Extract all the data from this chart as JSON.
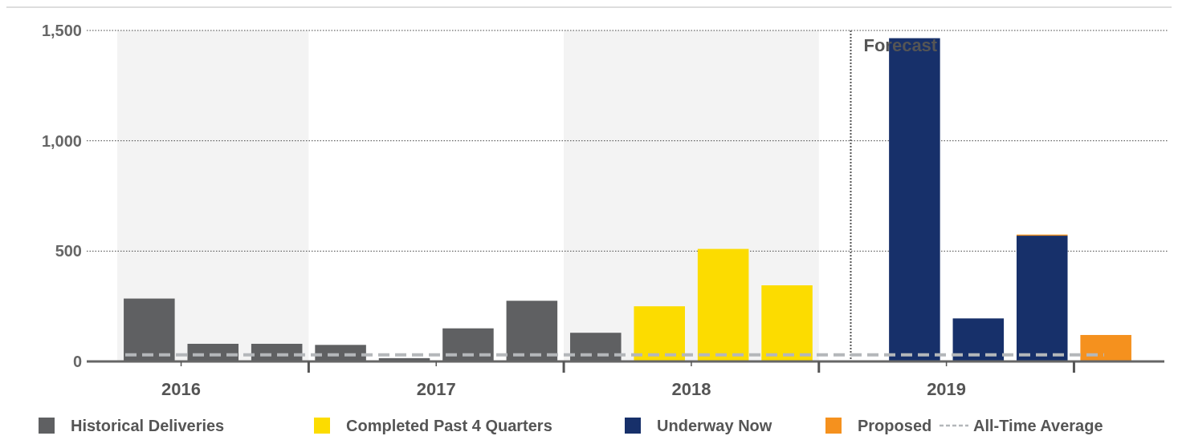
{
  "chart_data": {
    "type": "bar",
    "stacked": true,
    "x": [
      2016.375,
      2016.625,
      2016.875,
      2017.125,
      2017.375,
      2017.625,
      2017.875,
      2018.125,
      2018.375,
      2018.625,
      2018.875,
      2019.125,
      2019.375,
      2019.625,
      2019.875,
      2020.125
    ],
    "series": [
      {
        "name": "Historical Deliveries",
        "color": "#5f6062",
        "values": [
          285,
          80,
          80,
          75,
          15,
          150,
          275,
          130,
          null,
          null,
          null,
          null,
          null,
          null,
          null,
          null
        ]
      },
      {
        "name": "Completed Past 4 Quarters",
        "color": "#fcdc00",
        "values": [
          null,
          null,
          null,
          null,
          null,
          null,
          null,
          null,
          250,
          510,
          345,
          null,
          null,
          null,
          null,
          null
        ]
      },
      {
        "name": "Underway Now",
        "color": "#17306a",
        "values": [
          null,
          null,
          null,
          null,
          null,
          null,
          null,
          null,
          null,
          null,
          null,
          null,
          1465,
          195,
          570,
          null
        ]
      },
      {
        "name": "Proposed",
        "color": "#f5911e",
        "values": [
          null,
          null,
          null,
          null,
          null,
          null,
          null,
          null,
          null,
          null,
          null,
          null,
          null,
          null,
          5,
          120
        ]
      }
    ],
    "xlim": [
      2016.13,
      2020.37
    ],
    "xticks": [
      {
        "value": 2016.5,
        "label": "2016"
      },
      {
        "value": 2017,
        "label": null
      },
      {
        "value": 2017.5,
        "label": "2017"
      },
      {
        "value": 2018,
        "label": null
      },
      {
        "value": 2018.5,
        "label": "2018"
      },
      {
        "value": 2019,
        "label": null
      },
      {
        "value": 2019.5,
        "label": "2019"
      },
      {
        "value": 2020,
        "label": null
      }
    ],
    "ylim": [
      0,
      1500
    ],
    "yticks": [
      0,
      {
        "value": 500,
        "label": "500"
      },
      {
        "value": 1000,
        "label": "1,000"
      },
      {
        "value": 1500,
        "label": "1,500"
      }
    ],
    "grid": "y",
    "bands": [
      {
        "axis": "x",
        "from": 2016.25,
        "to": 2017,
        "color": "#f3f3f3"
      },
      {
        "axis": "x",
        "from": 2018,
        "to": 2019,
        "color": "#f3f3f3"
      }
    ],
    "ref_lines": [
      {
        "axis": "x",
        "value": 2019.125,
        "label": "Forecast",
        "color": "#555555",
        "line_style": "dotted"
      },
      {
        "axis": "y",
        "value": 30,
        "label": "All-Time Average",
        "color": "#b4b7ba",
        "line_style": "dashed"
      }
    ],
    "legend": "bottom"
  }
}
